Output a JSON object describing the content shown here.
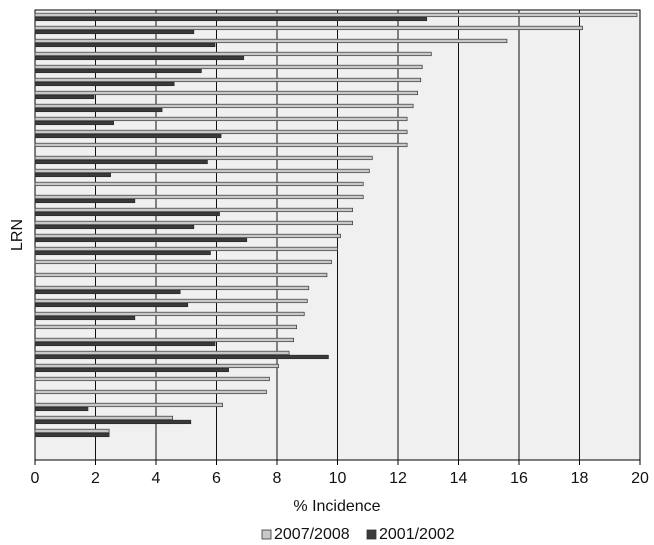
{
  "chart_data": {
    "type": "bar",
    "orientation": "horizontal",
    "title": "",
    "xlabel": "% Incidence",
    "ylabel": "LRN",
    "xlim": [
      0,
      20
    ],
    "xticks": [
      0,
      2,
      4,
      6,
      8,
      10,
      12,
      14,
      16,
      18,
      20
    ],
    "grid": "vertical",
    "legend_position": "bottom",
    "series": [
      {
        "name": "2007/2008",
        "color": "#c8c8c8",
        "values": [
          19.9,
          18.1,
          15.6,
          13.1,
          12.8,
          12.75,
          12.65,
          12.5,
          12.3,
          12.3,
          12.3,
          11.15,
          11.05,
          10.85,
          10.85,
          10.5,
          10.5,
          10.1,
          10.0,
          9.8,
          9.65,
          9.05,
          9.0,
          8.9,
          8.65,
          8.55,
          8.4,
          8.05,
          7.75,
          7.65,
          6.2,
          4.55,
          2.45
        ]
      },
      {
        "name": "2001/2002",
        "color": "#3a3a3a",
        "values": [
          12.95,
          5.25,
          5.95,
          6.9,
          5.5,
          4.6,
          1.95,
          4.2,
          2.6,
          6.15,
          null,
          5.7,
          2.5,
          null,
          3.3,
          6.1,
          5.25,
          7.0,
          5.8,
          null,
          null,
          4.8,
          5.05,
          3.3,
          null,
          5.95,
          9.7,
          6.4,
          null,
          null,
          1.75,
          5.15,
          2.45
        ]
      }
    ]
  }
}
